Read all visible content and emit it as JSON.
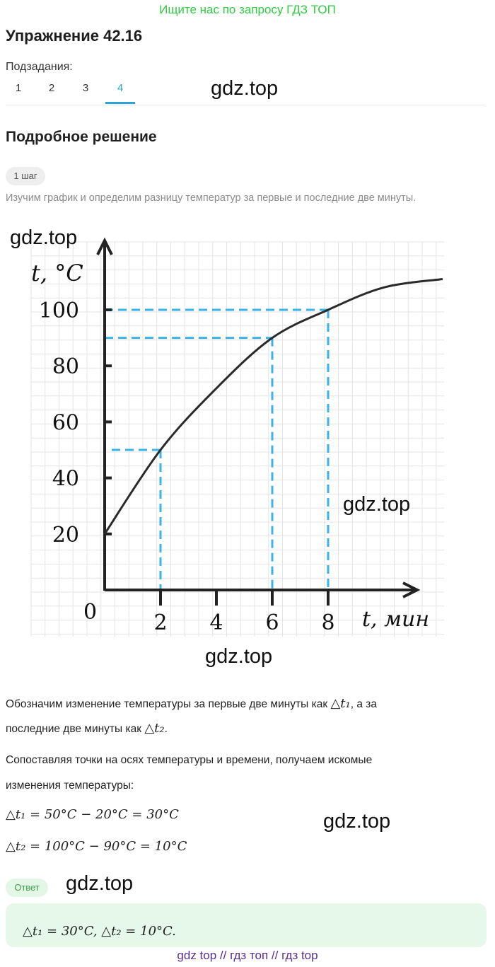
{
  "header": {
    "search_hint": "Ищите нас по запросу ГДЗ ТОП"
  },
  "exercise": {
    "title": "Упражнение 42.16"
  },
  "subtasks": {
    "label": "Подзадания:",
    "tabs": [
      "1",
      "2",
      "3",
      "4"
    ],
    "active_index": 3
  },
  "watermark": "gdz.top",
  "solution": {
    "title": "Подробное решение",
    "step_badge": "1 шаг",
    "step_text": "Изучим график и определим разницу температур за первые и последние две минуты."
  },
  "graph": {
    "y_axis_label": "t, °C",
    "x_axis_label": "t, мин",
    "origin_label": "0",
    "y_ticks": [
      "20",
      "40",
      "60",
      "80",
      "100"
    ],
    "x_ticks": [
      "2",
      "4",
      "6",
      "8"
    ]
  },
  "chart_data": {
    "type": "line",
    "xlabel": "t, мин",
    "ylabel": "t, °C",
    "xlim": [
      0,
      12
    ],
    "ylim": [
      0,
      120
    ],
    "series": [
      {
        "x": [
          0,
          2,
          4,
          6,
          8,
          10,
          12
        ],
        "y": [
          20,
          50,
          72,
          90,
          100,
          108,
          113
        ]
      }
    ],
    "guides": [
      {
        "x": 2,
        "y": 50
      },
      {
        "x": 6,
        "y": 90
      },
      {
        "x": 8,
        "y": 100
      }
    ],
    "accent_color": "#3ab4e8"
  },
  "explanation": {
    "line1_prefix": "Обозначим изменение температуры за первые две минуты как ",
    "line1_math": "△t₁",
    "line1_suffix": ", а за",
    "line2_prefix": "последние две минуты как ",
    "line2_math": "△t₂",
    "line2_suffix": ".",
    "line3": "Сопоставляя точки на осях температуры и времени, получаем искомые",
    "line4": "изменения температуры:",
    "eq1": "△t₁ = 50°C − 20°C = 30°C",
    "eq2": "△t₂ = 100°C − 90°C = 10°C"
  },
  "answer": {
    "badge": "Ответ",
    "text": "△t₁ = 30°C, △t₂ = 10°C."
  },
  "footer": {
    "text": "gdz top  //  гдз топ  //  гдз top"
  }
}
